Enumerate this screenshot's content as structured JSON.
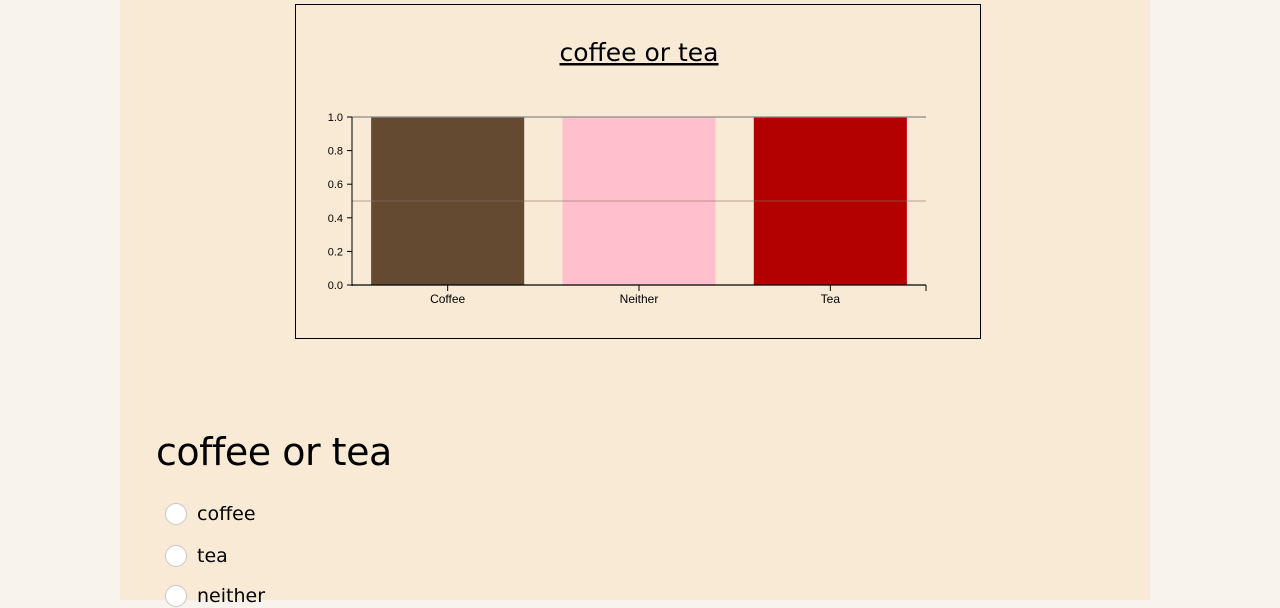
{
  "chart_data": {
    "type": "bar",
    "title": "coffee or tea",
    "categories": [
      "Coffee",
      "Neither",
      "Tea"
    ],
    "values": [
      1.0,
      1.0,
      1.0
    ],
    "colors": [
      "#634a31",
      "#ffbfcc",
      "#b30000"
    ],
    "yticks": [
      "0.0",
      "0.2",
      "0.4",
      "0.6",
      "0.8",
      "1.0"
    ],
    "ylim": [
      0,
      1
    ],
    "reference_line": 0.5,
    "grid": false,
    "xlabel": "",
    "ylabel": ""
  },
  "poll": {
    "question": "coffee or tea",
    "options": [
      "coffee",
      "tea",
      "neither"
    ]
  }
}
